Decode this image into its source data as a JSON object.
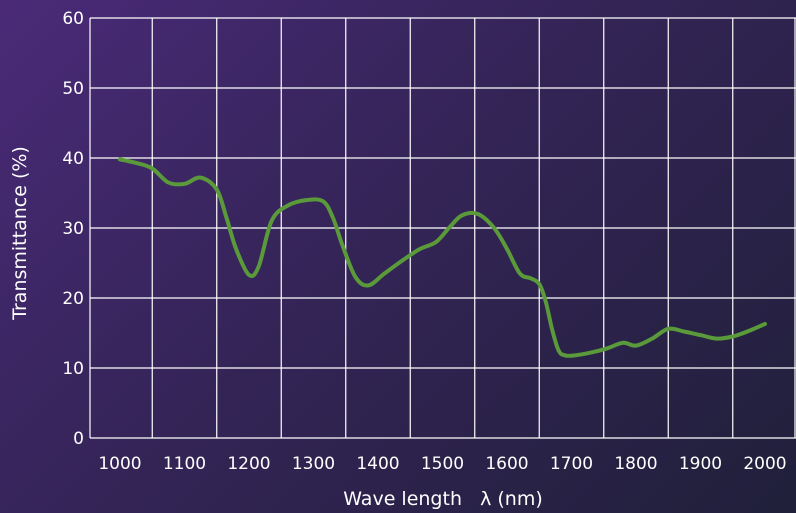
{
  "chart_data": {
    "type": "line",
    "title": "",
    "xlabel": "Wave length   λ (nm)",
    "ylabel": "Transmittance (%)",
    "xlim": [
      1000,
      2000
    ],
    "ylim": [
      0,
      60
    ],
    "x_ticks": [
      1000,
      1100,
      1200,
      1300,
      1400,
      1500,
      1600,
      1700,
      1800,
      1900,
      2000
    ],
    "y_ticks": [
      0,
      10,
      20,
      30,
      40,
      50,
      60
    ],
    "grid": true,
    "colors": {
      "line": "#5a9a3a",
      "grid": "#ffffff"
    },
    "series": [
      {
        "x": [
          1000,
          1025,
          1050,
          1075,
          1100,
          1125,
          1150,
          1165,
          1180,
          1200,
          1215,
          1235,
          1260,
          1290,
          1315,
          1330,
          1345,
          1365,
          1385,
          1410,
          1440,
          1465,
          1490,
          1510,
          1530,
          1555,
          1580,
          1600,
          1620,
          1637,
          1650,
          1660,
          1670,
          1680,
          1690,
          1705,
          1730,
          1755,
          1780,
          1800,
          1825,
          1850,
          1875,
          1900,
          1925,
          1950,
          1975,
          2000
        ],
        "y": [
          39.8,
          39.3,
          38.5,
          36.5,
          36.3,
          37.2,
          35.5,
          31.5,
          27.0,
          23.3,
          24.5,
          31.0,
          33.2,
          34.0,
          33.8,
          31.5,
          27.5,
          23.0,
          21.8,
          23.5,
          25.5,
          27.0,
          28.0,
          30.0,
          31.8,
          32.0,
          30.0,
          27.0,
          23.5,
          22.8,
          22.0,
          19.5,
          15.5,
          12.5,
          11.8,
          11.8,
          12.2,
          12.8,
          13.6,
          13.2,
          14.2,
          15.6,
          15.2,
          14.7,
          14.2,
          14.5,
          15.3,
          16.3
        ]
      }
    ]
  }
}
